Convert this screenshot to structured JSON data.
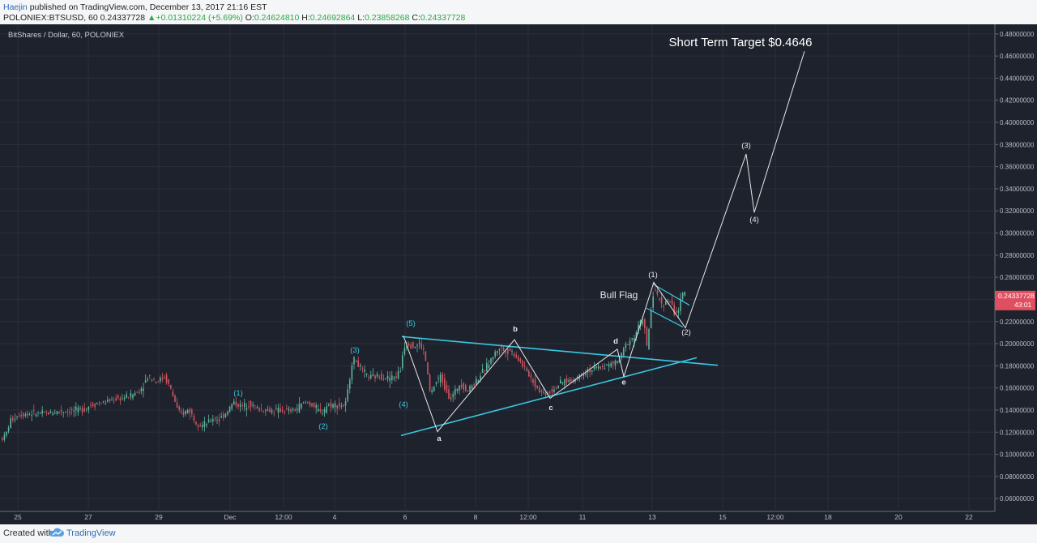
{
  "header": {
    "author": "Haejin",
    "published": "published on TradingView.com, December 13, 2017 21:16 EST",
    "symbol": "POLONIEX:BTSUSD, 60",
    "last": "0.24337728",
    "change": "+0.01310224 (+5.69%)",
    "o_label": "O:",
    "open": "0.24624810",
    "h_label": "H:",
    "high": "0.24692864",
    "l_label": "L:",
    "low": "0.23858268",
    "c_label": "C:",
    "close": "0.24337728"
  },
  "footer": {
    "created_with": "Created with",
    "brand": "TradingView"
  },
  "colors": {
    "background": "#1e222d",
    "grid": "#2b2f3a",
    "up": "#5fb49c",
    "down": "#d05561",
    "trendline": "#38c8e0",
    "annotation": "#e8e8e8",
    "price_tag": "#e04f5f"
  },
  "chart_data": {
    "type": "candlestick",
    "title": "BitShares / Dollar, 60, POLONIEX",
    "y_ticks": [
      "0.06000000",
      "0.08000000",
      "0.10000000",
      "0.12000000",
      "0.14000000",
      "0.16000000",
      "0.18000000",
      "0.20000000",
      "0.22000000",
      "0.24000000",
      "0.26000000",
      "0.28000000",
      "0.30000000",
      "0.32000000",
      "0.34000000",
      "0.36000000",
      "0.38000000",
      "0.40000000",
      "0.42000000",
      "0.44000000",
      "0.46000000",
      "0.48000000"
    ],
    "ylim": [
      0.055,
      0.485
    ],
    "x_ticks": [
      "25",
      "27",
      "29",
      "Dec",
      "12:00",
      "4",
      "6",
      "8",
      "12:00",
      "11",
      "13",
      "15",
      "12:00",
      "18",
      "20",
      "22"
    ],
    "price_tag": {
      "price": "0.24337728",
      "countdown": "43:01",
      "value": 0.24338
    },
    "price_path": [
      [
        0,
        0.114
      ],
      [
        8,
        0.116
      ],
      [
        15,
        0.131
      ],
      [
        25,
        0.136
      ],
      [
        40,
        0.137
      ],
      [
        60,
        0.137
      ],
      [
        75,
        0.139
      ],
      [
        90,
        0.139
      ],
      [
        105,
        0.141
      ],
      [
        115,
        0.145
      ],
      [
        130,
        0.147
      ],
      [
        145,
        0.15
      ],
      [
        160,
        0.152
      ],
      [
        175,
        0.158
      ],
      [
        185,
        0.171
      ],
      [
        195,
        0.166
      ],
      [
        205,
        0.17
      ],
      [
        212,
        0.16
      ],
      [
        218,
        0.147
      ],
      [
        222,
        0.137
      ],
      [
        228,
        0.137
      ],
      [
        235,
        0.141
      ],
      [
        242,
        0.131
      ],
      [
        250,
        0.126
      ],
      [
        258,
        0.128
      ],
      [
        265,
        0.133
      ],
      [
        272,
        0.131
      ],
      [
        280,
        0.137
      ],
      [
        290,
        0.147
      ],
      [
        300,
        0.143
      ],
      [
        310,
        0.146
      ],
      [
        320,
        0.141
      ],
      [
        330,
        0.14
      ],
      [
        340,
        0.139
      ],
      [
        350,
        0.14
      ],
      [
        360,
        0.139
      ],
      [
        368,
        0.141
      ],
      [
        375,
        0.146
      ],
      [
        382,
        0.147
      ],
      [
        390,
        0.143
      ],
      [
        398,
        0.137
      ],
      [
        405,
        0.144
      ],
      [
        412,
        0.145
      ],
      [
        420,
        0.144
      ],
      [
        428,
        0.144
      ],
      [
        432,
        0.161
      ],
      [
        436,
        0.183
      ],
      [
        440,
        0.186
      ],
      [
        448,
        0.176
      ],
      [
        458,
        0.169
      ],
      [
        470,
        0.171
      ],
      [
        480,
        0.169
      ],
      [
        490,
        0.17
      ],
      [
        496,
        0.176
      ],
      [
        500,
        0.198
      ],
      [
        506,
        0.201
      ],
      [
        512,
        0.197
      ],
      [
        520,
        0.2
      ],
      [
        526,
        0.191
      ],
      [
        533,
        0.154
      ],
      [
        540,
        0.165
      ],
      [
        545,
        0.171
      ],
      [
        552,
        0.159
      ],
      [
        558,
        0.15
      ],
      [
        563,
        0.156
      ],
      [
        570,
        0.165
      ],
      [
        578,
        0.157
      ],
      [
        585,
        0.163
      ],
      [
        592,
        0.169
      ],
      [
        600,
        0.177
      ],
      [
        608,
        0.186
      ],
      [
        618,
        0.197
      ],
      [
        625,
        0.193
      ],
      [
        632,
        0.194
      ],
      [
        640,
        0.188
      ],
      [
        648,
        0.179
      ],
      [
        655,
        0.172
      ],
      [
        662,
        0.163
      ],
      [
        670,
        0.156
      ],
      [
        678,
        0.155
      ],
      [
        685,
        0.159
      ],
      [
        692,
        0.163
      ],
      [
        700,
        0.167
      ],
      [
        708,
        0.166
      ],
      [
        716,
        0.171
      ],
      [
        725,
        0.175
      ],
      [
        735,
        0.177
      ],
      [
        745,
        0.179
      ],
      [
        755,
        0.181
      ],
      [
        762,
        0.183
      ],
      [
        768,
        0.187
      ],
      [
        772,
        0.196
      ],
      [
        778,
        0.203
      ],
      [
        785,
        0.206
      ],
      [
        790,
        0.216
      ],
      [
        796,
        0.224
      ],
      [
        800,
        0.195
      ],
      [
        805,
        0.228
      ],
      [
        809,
        0.251
      ],
      [
        813,
        0.243
      ],
      [
        818,
        0.237
      ],
      [
        823,
        0.236
      ],
      [
        828,
        0.24
      ],
      [
        834,
        0.228
      ],
      [
        839,
        0.23
      ],
      [
        845,
        0.246
      ]
    ],
    "triangle": [
      {
        "from": [
          496,
          0.2064
        ],
        "to": [
          886,
          0.1805
        ]
      },
      {
        "from": [
          495,
          0.117
        ],
        "to": [
          860,
          0.1873
        ]
      }
    ],
    "bull_flag": [
      {
        "from": [
          806,
          0.2539
        ],
        "to": [
          851,
          0.2348
        ]
      },
      {
        "from": [
          798,
          0.2321
        ],
        "to": [
          843,
          0.2151
        ]
      }
    ],
    "wave_path": [
      [
        498,
        0.2071
      ],
      [
        540,
        0.1205
      ],
      [
        635,
        0.2036
      ],
      [
        679,
        0.1507
      ],
      [
        762,
        0.195
      ],
      [
        770,
        0.1703
      ],
      [
        807,
        0.2554
      ],
      [
        846,
        0.2143
      ],
      [
        921,
        0.3714
      ],
      [
        931,
        0.3186
      ],
      [
        993,
        0.4643
      ]
    ],
    "wave_labels": [
      {
        "text": "(1)",
        "pos": [
          294,
          0.153
        ],
        "color": "trendline"
      },
      {
        "text": "(2)",
        "pos": [
          399,
          0.123
        ],
        "color": "trendline"
      },
      {
        "text": "(3)",
        "pos": [
          438,
          0.192
        ],
        "color": "trendline"
      },
      {
        "text": "(4)",
        "pos": [
          498,
          0.143
        ],
        "color": "trendline"
      },
      {
        "text": "(5)",
        "pos": [
          507,
          0.216
        ],
        "color": "trendline"
      },
      {
        "text": "a",
        "pos": [
          542,
          0.112
        ],
        "color": "annotation"
      },
      {
        "text": "b",
        "pos": [
          636,
          0.211
        ],
        "color": "annotation"
      },
      {
        "text": "c",
        "pos": [
          680,
          0.14
        ],
        "color": "annotation"
      },
      {
        "text": "d",
        "pos": [
          760,
          0.2
        ],
        "color": "annotation"
      },
      {
        "text": "e",
        "pos": [
          770,
          0.163
        ],
        "color": "annotation"
      },
      {
        "text": "(1)",
        "pos": [
          806,
          0.26
        ],
        "color": "annotation"
      },
      {
        "text": "(2)",
        "pos": [
          847,
          0.208
        ],
        "color": "annotation"
      },
      {
        "text": "(3)",
        "pos": [
          921,
          0.377
        ],
        "color": "annotation"
      },
      {
        "text": "(4)",
        "pos": [
          931,
          0.31
        ],
        "color": "annotation"
      }
    ],
    "bull_flag_label": {
      "text": "Bull Flag",
      "pos": [
        764,
        0.241
      ]
    },
    "target_label": {
      "text": "Short Term Target $0.4646",
      "pos": [
        914,
        0.469
      ]
    }
  }
}
